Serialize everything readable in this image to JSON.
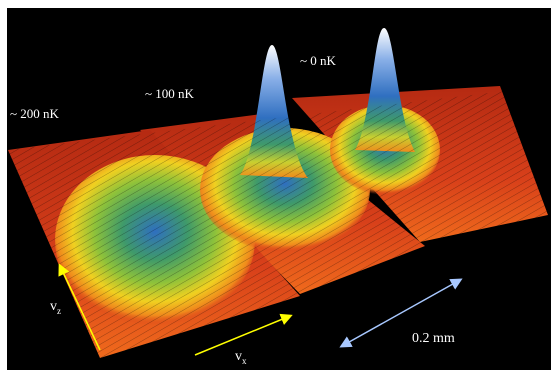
{
  "labels": [
    "~ 200 nK",
    "~ 100 nK",
    "~ 0 nK"
  ],
  "axes": [
    {
      "main": "v",
      "sub": "z"
    },
    {
      "main": "v",
      "sub": "x"
    }
  ],
  "scale_bar": "0.2 mm"
}
